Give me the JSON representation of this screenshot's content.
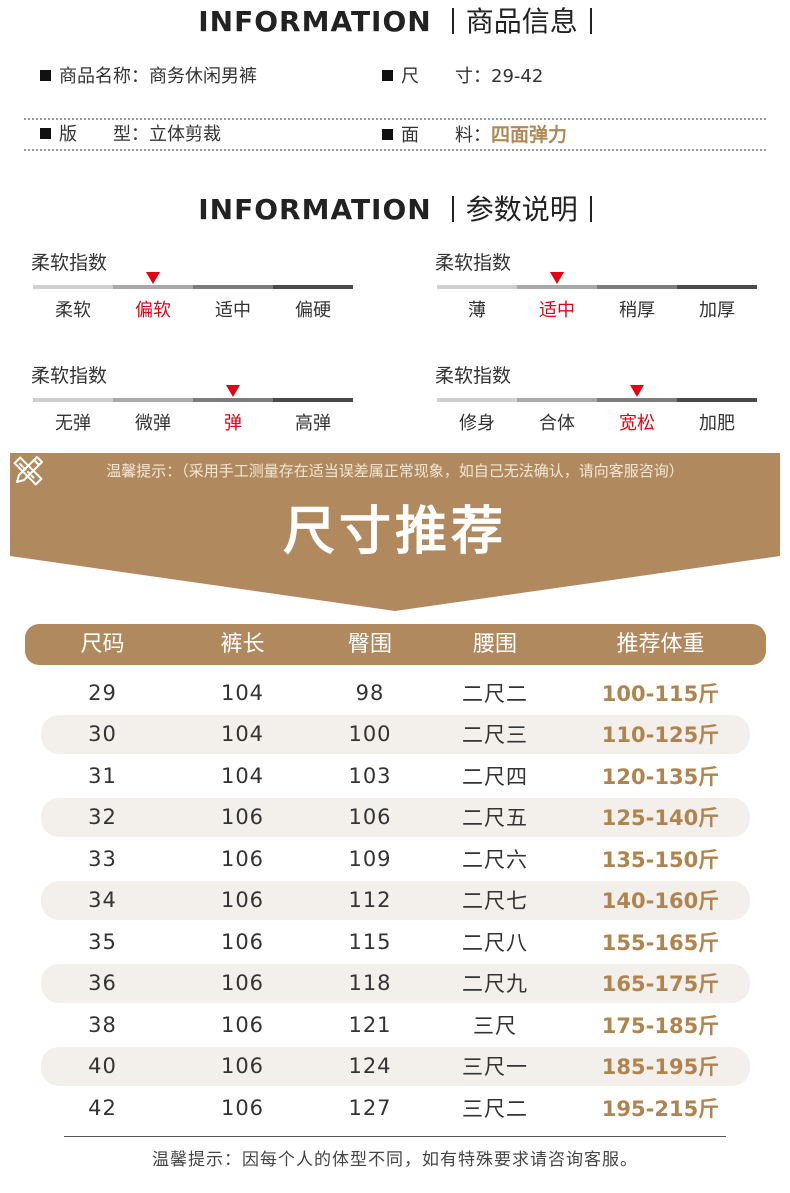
{
  "section1": {
    "en": "INFORMATION",
    "cn": "商品信息"
  },
  "product": {
    "name_label": "商品名称：",
    "name_value": "商务休闲男裤",
    "size_label": "尺　　寸：",
    "size_value": "29-42",
    "fit_label": "版　　型：",
    "fit_value": "立体剪裁",
    "fabric_label": "面　　料：",
    "fabric_value": "四面弹力",
    "highlight_color": "#b08a56"
  },
  "section2": {
    "en": "INFORMATION",
    "cn": "参数说明"
  },
  "scales": [
    {
      "title": "柔软指数",
      "options": [
        "柔软",
        "偏软",
        "适中",
        "偏硬"
      ],
      "selected_index": 1
    },
    {
      "title": "柔软指数",
      "options": [
        "薄",
        "适中",
        "稍厚",
        "加厚"
      ],
      "selected_index": 1
    },
    {
      "title": "柔软指数",
      "options": [
        "无弹",
        "微弹",
        "弹",
        "高弹"
      ],
      "selected_index": 2
    },
    {
      "title": "柔软指数",
      "options": [
        "修身",
        "合体",
        "宽松",
        "加肥"
      ],
      "selected_index": 2
    }
  ],
  "scale_colors": [
    "#cfcfcf",
    "#a9a9a9",
    "#7c7c7c",
    "#4a4a4a"
  ],
  "marker_color": "#e60012",
  "banner": {
    "tip": "温馨提示：（采用手工测量存在适当误差属正常现象，如自己无法确认，请向客服咨询）",
    "title": "尺寸推荐",
    "icon": "ruler-pencil-icon",
    "color": "#b08a5e"
  },
  "size_table": {
    "headers": [
      "尺码",
      "裤长",
      "臀围",
      "腰围",
      "推荐体重"
    ],
    "rows": [
      [
        "29",
        "104",
        "98",
        "二尺二",
        "100-115斤"
      ],
      [
        "30",
        "104",
        "100",
        "二尺三",
        "110-125斤"
      ],
      [
        "31",
        "104",
        "103",
        "二尺四",
        "120-135斤"
      ],
      [
        "32",
        "106",
        "106",
        "二尺五",
        "125-140斤"
      ],
      [
        "33",
        "106",
        "109",
        "二尺六",
        "135-150斤"
      ],
      [
        "34",
        "106",
        "112",
        "二尺七",
        "140-160斤"
      ],
      [
        "35",
        "106",
        "115",
        "二尺八",
        "155-165斤"
      ],
      [
        "36",
        "106",
        "118",
        "二尺九",
        "165-175斤"
      ],
      [
        "38",
        "106",
        "121",
        "三尺",
        "175-185斤"
      ],
      [
        "40",
        "106",
        "124",
        "三尺一",
        "185-195斤"
      ],
      [
        "42",
        "106",
        "127",
        "三尺二",
        "195-215斤"
      ]
    ]
  },
  "footer_tip": "温馨提示：因每个人的体型不同，如有特殊要求请咨询客服。"
}
